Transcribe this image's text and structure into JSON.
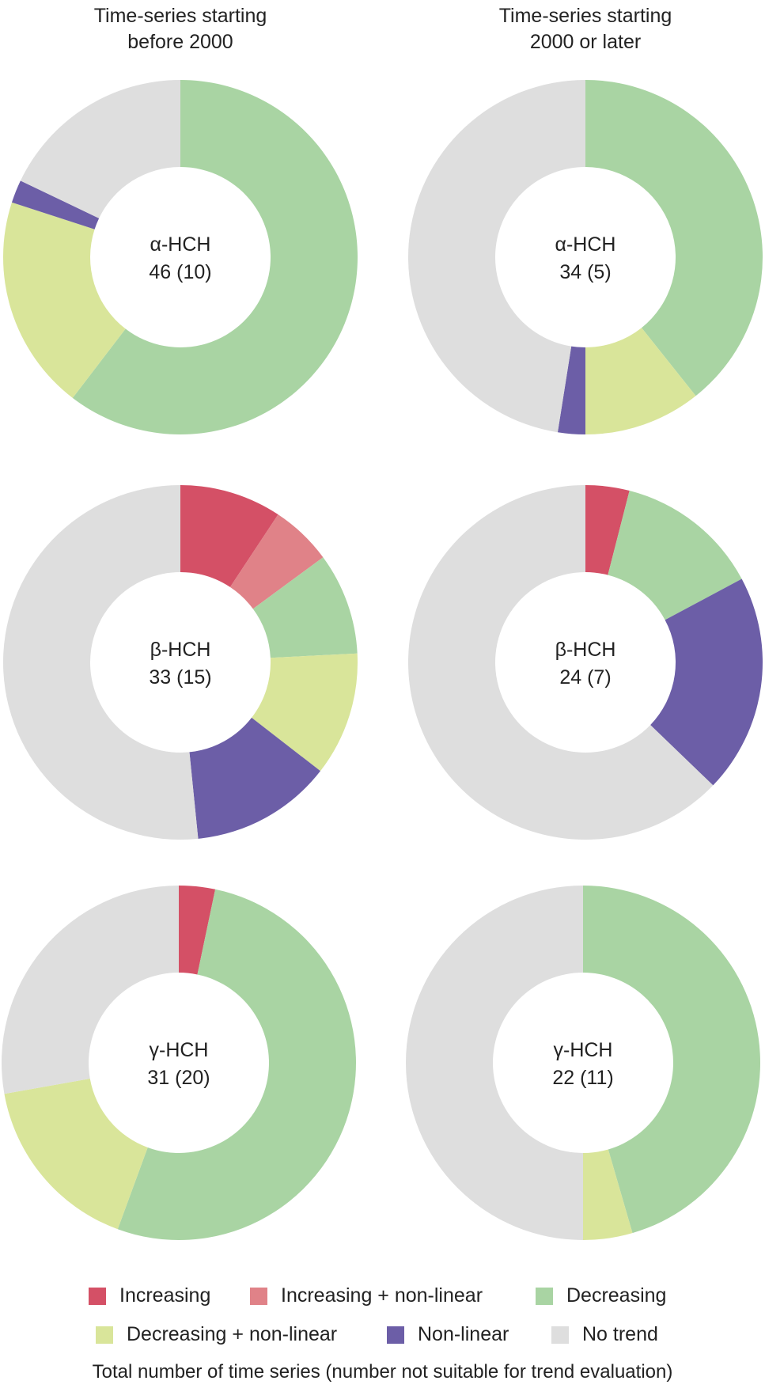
{
  "column_headers": {
    "left": [
      "Time-series starting",
      "before 2000"
    ],
    "right": [
      "Time-series starting",
      "2000 or later"
    ]
  },
  "colors": {
    "Increasing": "#d45066",
    "Increasing + non-linear": "#e08288",
    "Decreasing": "#a9d4a3",
    "Decreasing + non-linear": "#d9e59a",
    "Non-linear": "#6c5ea7",
    "No trend": "#dedede"
  },
  "legend": {
    "items": [
      "Increasing",
      "Increasing + non-linear",
      "Decreasing",
      "Decreasing + non-linear",
      "Non-linear",
      "No trend"
    ]
  },
  "footnote": "Total number of time series (number not suitable for trend evaluation)",
  "chart_data": [
    {
      "type": "pie",
      "column": "Time-series starting before 2000",
      "label": "α-HCH",
      "count": "46 (10)",
      "slices": [
        {
          "category": "Decreasing",
          "value": 0.604
        },
        {
          "category": "Decreasing + non-linear",
          "value": 0.196
        },
        {
          "category": "Non-linear",
          "value": 0.021
        },
        {
          "category": "No trend",
          "value": 0.179
        }
      ]
    },
    {
      "type": "pie",
      "column": "Time-series starting 2000 or later",
      "label": "α-HCH",
      "count": "34 (5)",
      "slices": [
        {
          "category": "Decreasing",
          "value": 0.393
        },
        {
          "category": "Decreasing + non-linear",
          "value": 0.107
        },
        {
          "category": "Non-linear",
          "value": 0.025
        },
        {
          "category": "No trend",
          "value": 0.475
        }
      ]
    },
    {
      "type": "pie",
      "column": "Time-series starting before 2000",
      "label": "β-HCH",
      "count": "33 (15)",
      "slices": [
        {
          "category": "Increasing",
          "value": 0.093
        },
        {
          "category": "Increasing + non-linear",
          "value": 0.056
        },
        {
          "category": "Decreasing",
          "value": 0.093
        },
        {
          "category": "Decreasing + non-linear",
          "value": 0.113
        },
        {
          "category": "Non-linear",
          "value": 0.129
        },
        {
          "category": "No trend",
          "value": 0.516
        }
      ]
    },
    {
      "type": "pie",
      "column": "Time-series starting 2000 or later",
      "label": "β-HCH",
      "count": "24 (7)",
      "slices": [
        {
          "category": "Increasing",
          "value": 0.04
        },
        {
          "category": "Decreasing",
          "value": 0.132
        },
        {
          "category": "Non-linear",
          "value": 0.2
        },
        {
          "category": "No trend",
          "value": 0.628
        }
      ]
    },
    {
      "type": "pie",
      "column": "Time-series starting before 2000",
      "label": "γ-HCH",
      "count": "31 (20)",
      "slices": [
        {
          "category": "Increasing",
          "value": 0.033
        },
        {
          "category": "Decreasing",
          "value": 0.523
        },
        {
          "category": "Decreasing + non-linear",
          "value": 0.166
        },
        {
          "category": "No trend",
          "value": 0.278
        }
      ]
    },
    {
      "type": "pie",
      "column": "Time-series starting 2000 or later",
      "label": "γ-HCH",
      "count": "22 (11)",
      "slices": [
        {
          "category": "Decreasing",
          "value": 0.455
        },
        {
          "category": "Decreasing + non-linear",
          "value": 0.045
        },
        {
          "category": "No trend",
          "value": 0.5
        }
      ]
    }
  ]
}
